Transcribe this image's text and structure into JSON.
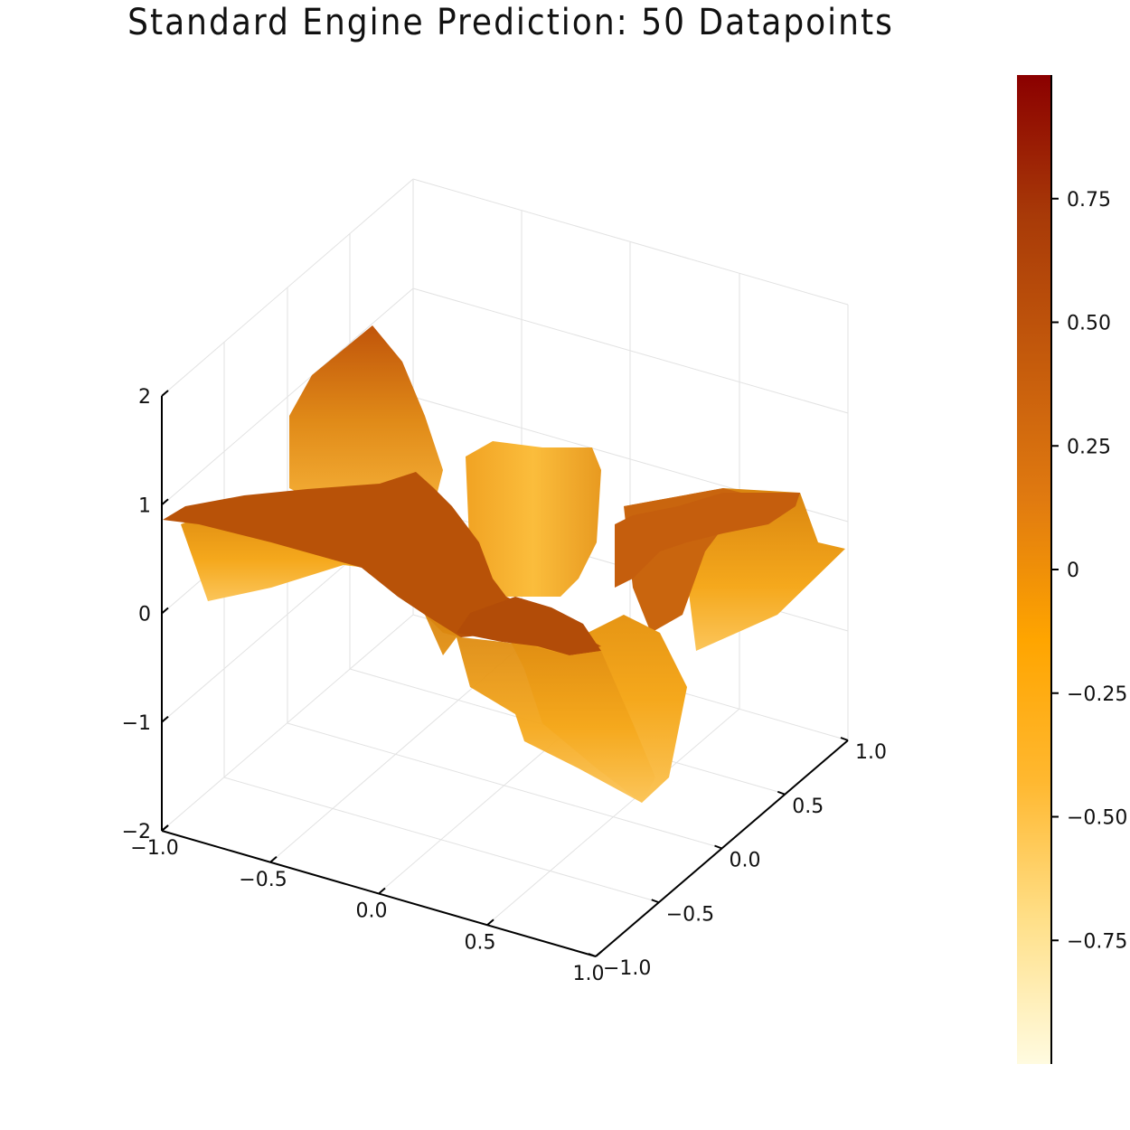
{
  "chart_data": {
    "type": "surface",
    "title": "Standard Engine Prediction: 50 Datapoints",
    "xlabel": "",
    "ylabel": "",
    "zlabel": "",
    "x_ticks": [
      "−1.0",
      "−0.5",
      "0.0",
      "0.5",
      "1.0"
    ],
    "y_ticks": [
      "−1.0",
      "−0.5",
      "0.0",
      "0.5",
      "1.0"
    ],
    "z_ticks": [
      "−2",
      "−1",
      "0",
      "1",
      "2"
    ],
    "xlim": [
      -1,
      1
    ],
    "ylim": [
      -1,
      1
    ],
    "zlim": [
      -2,
      2
    ],
    "colorbar": {
      "range": [
        -1,
        1
      ],
      "ticks": [
        "0.75",
        "0.50",
        "0.25",
        "0",
        "−0.25",
        "−0.50",
        "−0.75"
      ],
      "tick_values": [
        0.75,
        0.5,
        0.25,
        0,
        -0.25,
        -0.5,
        -0.75
      ],
      "colormap": [
        "#fffbe0",
        "#ffe08a",
        "#ffb830",
        "#ffa500",
        "#e07a10",
        "#c45a0c",
        "#a83a08",
        "#8b0000"
      ]
    },
    "grid": true,
    "legend": "none"
  }
}
